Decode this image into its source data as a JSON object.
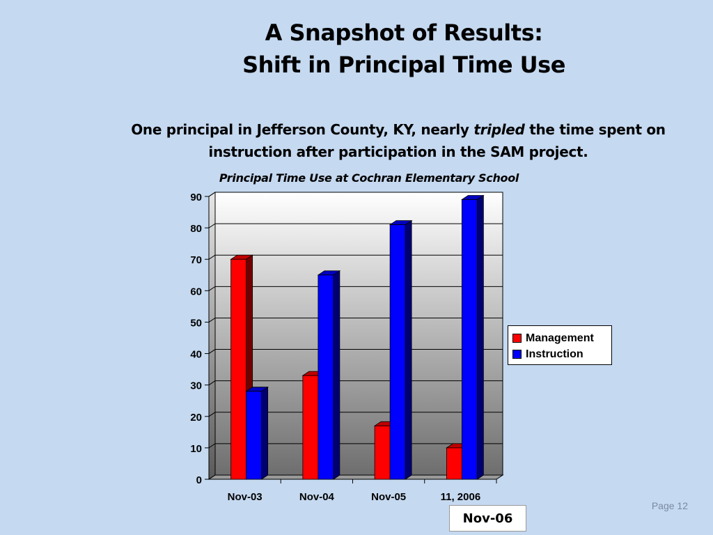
{
  "slide": {
    "title_line1": "A Snapshot of Results:",
    "title_line2": "Shift in Principal Time Use",
    "subtitle_pre": "One principal in Jefferson County, KY, nearly ",
    "subtitle_em": "tripled",
    "subtitle_post": " the time spent on instruction after participation in the SAM project.",
    "page": "Page 12",
    "callout": "Nov-06"
  },
  "chart_data": {
    "type": "bar",
    "title": "Principal Time Use at Cochran Elementary School",
    "categories": [
      "Nov-03",
      "Nov-04",
      "Nov-05",
      "11, 2006"
    ],
    "series": [
      {
        "name": "Management",
        "values": [
          70,
          33,
          17,
          10
        ],
        "color": "#ff0000"
      },
      {
        "name": "Instruction",
        "values": [
          28,
          65,
          81,
          89
        ],
        "color": "#0000ff"
      }
    ],
    "xlabel": "",
    "ylabel": "",
    "ylim": [
      0,
      90
    ],
    "yticks": [
      0,
      10,
      20,
      30,
      40,
      50,
      60,
      70,
      80,
      90
    ],
    "grid": true,
    "legend": "right"
  }
}
